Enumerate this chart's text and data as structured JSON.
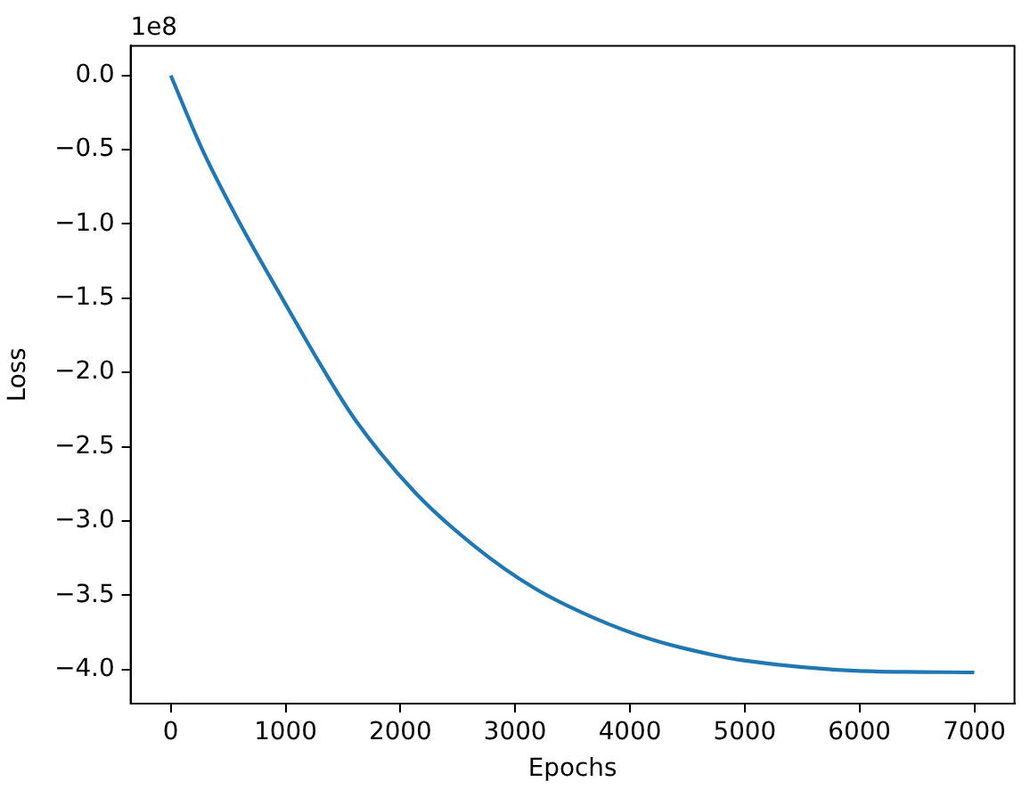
{
  "chart_data": {
    "type": "line",
    "xlabel": "Epochs",
    "ylabel": "Loss",
    "annotations": [
      "1e8"
    ],
    "x": [
      0,
      275,
      605,
      970,
      1345,
      1617,
      2130,
      2647,
      3163,
      3679,
      4195,
      4711,
      4994,
      6000,
      7000
    ],
    "series": [
      {
        "color": "#1f77b4",
        "values": [
          0,
          -0.5,
          -1.0,
          -1.5,
          -2.0,
          -2.33,
          -2.81,
          -3.17,
          -3.45,
          -3.65,
          -3.8,
          -3.9,
          -3.94,
          -4.01,
          -4.02
        ]
      }
    ],
    "xlim": [
      -350,
      7350
    ],
    "ylim": [
      -4.23,
      0.2
    ],
    "xticks": [
      0,
      1000,
      2000,
      3000,
      4000,
      5000,
      6000,
      7000
    ],
    "yticks": [
      {
        "value": 0,
        "label": "0.0"
      },
      {
        "value": -0.5,
        "label": "−0.5"
      },
      {
        "value": -1.0,
        "label": "−1.0"
      },
      {
        "value": -1.5,
        "label": "−1.5"
      },
      {
        "value": -2.0,
        "label": "−2.0"
      },
      {
        "value": -2.5,
        "label": "−2.5"
      },
      {
        "value": -3.0,
        "label": "−3.0"
      },
      {
        "value": -3.5,
        "label": "−3.5"
      },
      {
        "value": -4.0,
        "label": "−4.0"
      }
    ]
  }
}
